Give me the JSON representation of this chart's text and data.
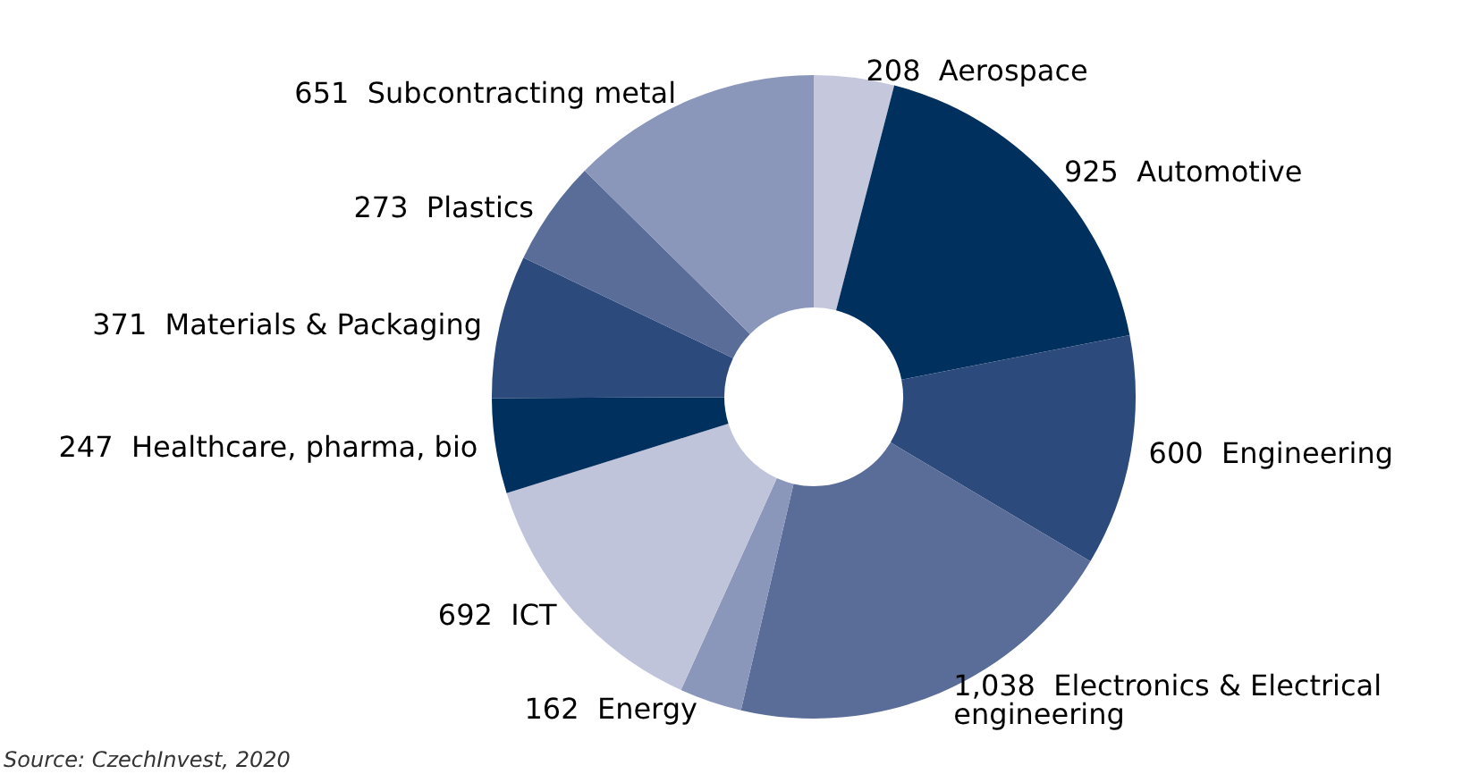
{
  "chart_data": {
    "type": "donut",
    "categories": [
      "Aerospace",
      "Automotive",
      "Engineering",
      "Electronics & Electrical engineering",
      "Energy",
      "ICT",
      "Healthcare, pharma, bio",
      "Materials & Packaging",
      "Plastics",
      "Subcontracting metal"
    ],
    "values": [
      208,
      925,
      600,
      1038,
      162,
      692,
      247,
      371,
      273,
      651
    ],
    "value_labels": [
      "208",
      "925",
      "600",
      "1,038",
      "162",
      "692",
      "247",
      "371",
      "273",
      "651"
    ],
    "colors": [
      "#c5c8dc",
      "#00305e",
      "#2c4a7c",
      "#5a6c98",
      "#8a96ba",
      "#c0c4da",
      "#00305e",
      "#2c4a7c",
      "#5a6c98",
      "#8a96ba"
    ],
    "legend": false,
    "annotations": [
      "Source: CzechInvest, 2020"
    ]
  }
}
